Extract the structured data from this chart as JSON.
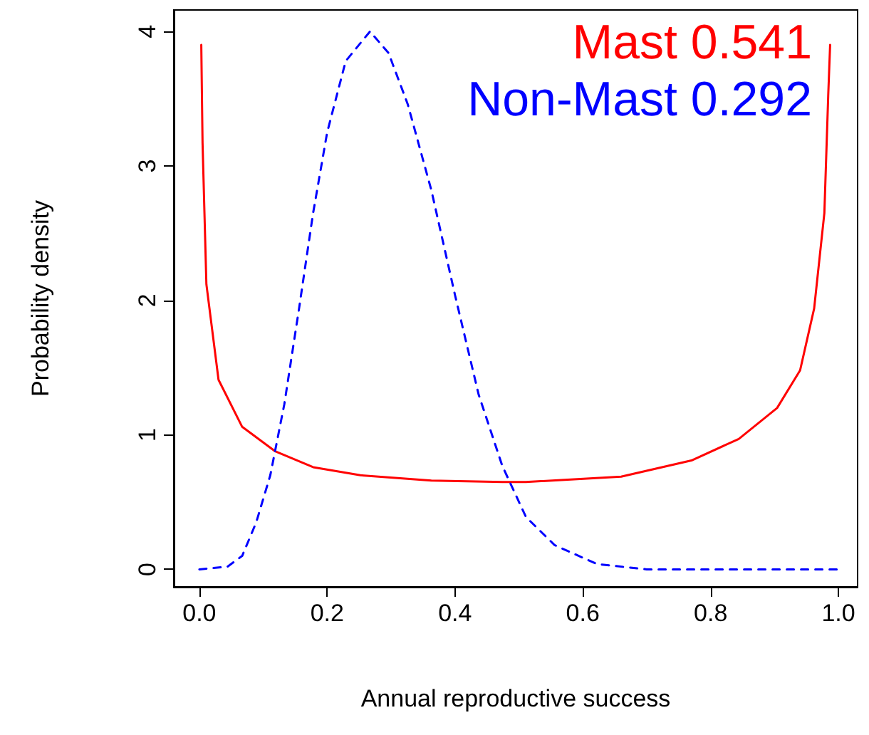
{
  "chart_data": {
    "type": "line",
    "xlabel": "Annual reproductive success",
    "ylabel": "Probability density",
    "xlim": [
      -0.04,
      1.03
    ],
    "ylim": [
      -0.13,
      4.16
    ],
    "xticks": [
      {
        "value": 0,
        "label": "0.0"
      },
      {
        "value": 0.2,
        "label": "0.2"
      },
      {
        "value": 0.4,
        "label": "0.4"
      },
      {
        "value": 0.6,
        "label": "0.6"
      },
      {
        "value": 0.8,
        "label": "0.8"
      },
      {
        "value": 1,
        "label": "1.0"
      }
    ],
    "yticks": [
      0,
      1,
      2,
      3,
      4
    ],
    "grid": false,
    "legend": "top right",
    "marker": "none",
    "series": [
      {
        "name": "Mast 0.541",
        "color": "#ff0000",
        "line_style": "solid",
        "x": [
          0.003,
          0.005,
          0.011,
          0.03,
          0.067,
          0.118,
          0.178,
          0.252,
          0.363,
          0.474,
          0.511,
          0.66,
          0.77,
          0.844,
          0.904,
          0.94,
          0.962,
          0.978,
          0.984,
          0.987
        ],
        "values": [
          3.9,
          3.17,
          2.12,
          1.41,
          1.06,
          0.88,
          0.76,
          0.7,
          0.66,
          0.65,
          0.65,
          0.69,
          0.81,
          0.97,
          1.2,
          1.48,
          1.94,
          2.65,
          3.52,
          3.9
        ]
      },
      {
        "name": "Non-Mast 0.292",
        "color": "#0000ff",
        "line_style": "dashed",
        "x": [
          0,
          0.044,
          0.067,
          0.089,
          0.111,
          0.133,
          0.156,
          0.178,
          0.2,
          0.229,
          0.267,
          0.296,
          0.326,
          0.363,
          0.4,
          0.437,
          0.474,
          0.511,
          0.556,
          0.622,
          0.7,
          1.0
        ],
        "values": [
          0,
          0.02,
          0.1,
          0.35,
          0.7,
          1.23,
          1.94,
          2.65,
          3.25,
          3.78,
          4.0,
          3.84,
          3.46,
          2.82,
          2.04,
          1.3,
          0.77,
          0.39,
          0.18,
          0.04,
          0,
          0
        ]
      }
    ]
  }
}
